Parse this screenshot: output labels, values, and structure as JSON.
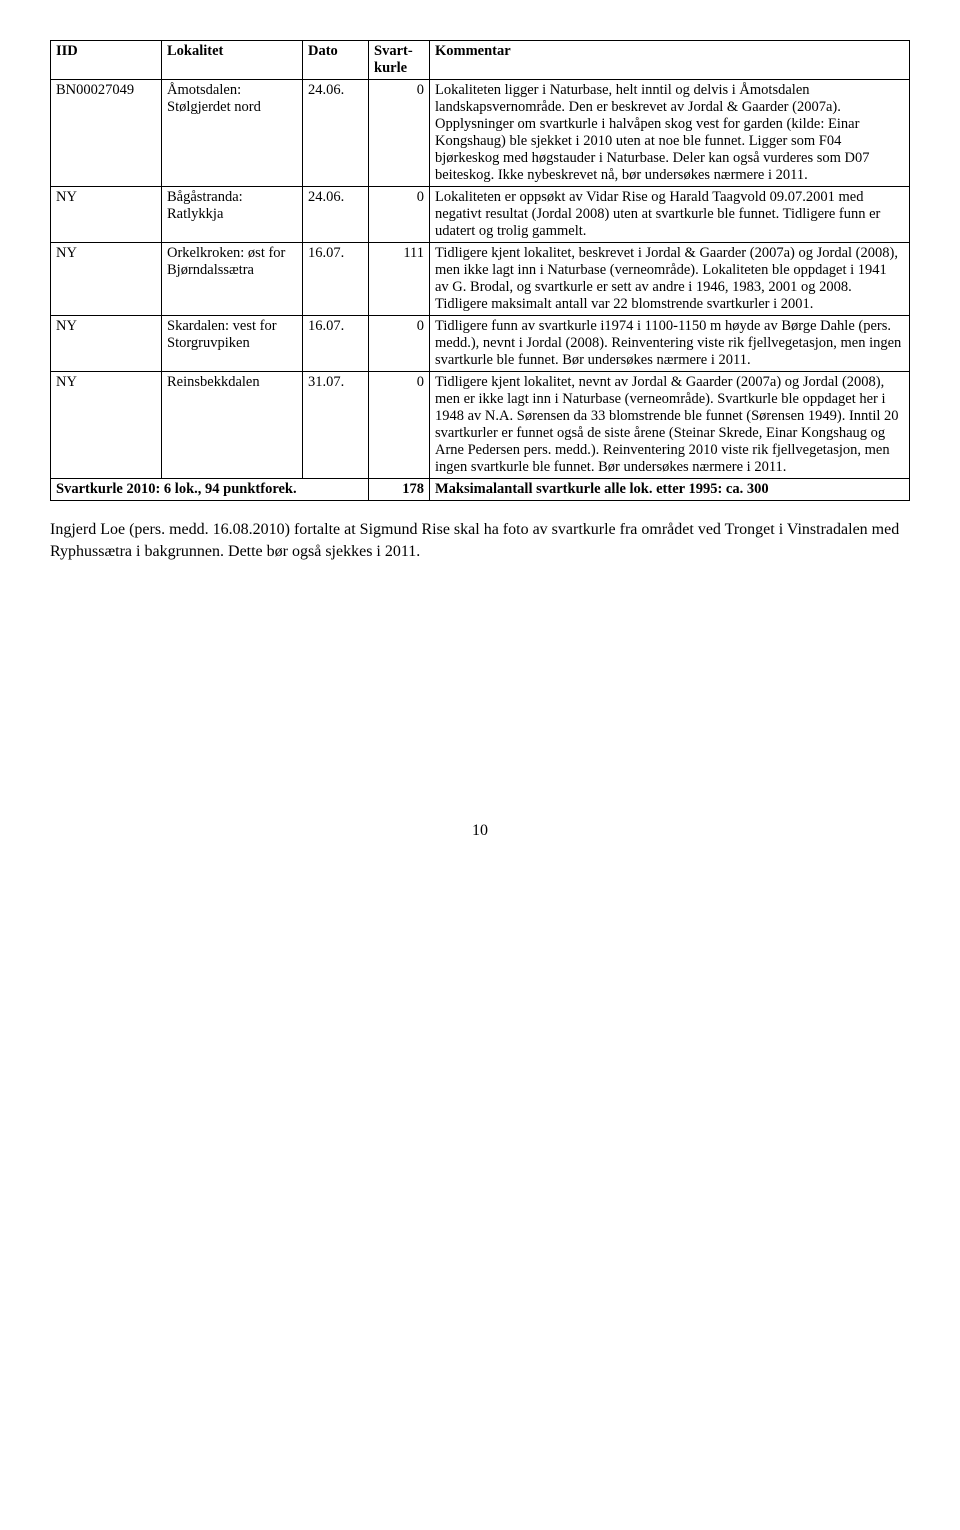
{
  "table": {
    "headers": {
      "iid": "IID",
      "lokalitet": "Lokalitet",
      "dato": "Dato",
      "svartkurle": "Svart-kurle",
      "kommentar": "Kommentar"
    },
    "rows": [
      {
        "iid": "BN00027049",
        "lokalitet": "Åmotsdalen: Stølgjerdet nord",
        "dato": "24.06.",
        "svart": "0",
        "kommentar": "Lokaliteten ligger i Naturbase, helt inntil og delvis i Åmotsdalen landskapsvernområde. Den er beskrevet av Jordal & Gaarder (2007a). Opplysninger om svartkurle i halvåpen skog vest for garden (kilde: Einar Kongshaug) ble sjekket i 2010 uten at noe ble funnet. Ligger som F04 bjørkeskog med høgstauder i Naturbase. Deler kan også vurderes som D07 beiteskog. Ikke nybeskrevet nå, bør undersøkes nærmere i 2011."
      },
      {
        "iid": "NY",
        "lokalitet": "Bågåstranda: Ratlykkja",
        "dato": "24.06.",
        "svart": "0",
        "kommentar": "Lokaliteten er oppsøkt av Vidar Rise og Harald Taagvold 09.07.2001 med negativt resultat (Jordal 2008) uten at svartkurle ble funnet. Tidligere funn er udatert og trolig gammelt."
      },
      {
        "iid": "NY",
        "lokalitet": "Orkelkroken: øst for Bjørndalssætra",
        "dato": "16.07.",
        "svart": "111",
        "kommentar": "Tidligere kjent lokalitet, beskrevet i Jordal & Gaarder (2007a) og Jordal (2008), men ikke lagt inn i Naturbase (verneområde). Lokaliteten ble oppdaget i 1941 av G. Brodal, og svartkurle er sett av andre i 1946, 1983, 2001 og 2008. Tidligere maksimalt antall var 22 blomstrende svartkurler i 2001."
      },
      {
        "iid": "NY",
        "lokalitet": "Skardalen: vest for Storgruvpiken",
        "dato": "16.07.",
        "svart": "0",
        "kommentar": "Tidligere funn av svartkurle i1974 i 1100-1150 m høyde av Børge Dahle (pers. medd.), nevnt i Jordal (2008). Reinventering viste rik fjellvegetasjon, men ingen svartkurle ble funnet. Bør undersøkes nærmere i 2011."
      },
      {
        "iid": "NY",
        "lokalitet": "Reinsbekkdalen",
        "dato": "31.07.",
        "svart": "0",
        "kommentar": "Tidligere kjent lokalitet, nevnt av Jordal & Gaarder (2007a) og Jordal (2008), men er ikke lagt inn i Naturbase (verneområde). Svartkurle ble oppdaget her i 1948 av N.A. Sørensen da 33 blomstrende ble funnet (Sørensen 1949). Inntil 20 svartkurler er funnet også de siste årene (Steinar Skrede, Einar Kongshaug og Arne Pedersen pers. medd.). Reinventering 2010 viste rik fjellvegetasjon, men ingen svartkurle ble funnet. Bør undersøkes nærmere i 2011."
      }
    ],
    "footer": {
      "left": "Svartkurle 2010: 6 lok., 94 punktforek.",
      "svart": "178",
      "right": "Maksimalantall svartkurle alle lok. etter 1995: ca. 300"
    }
  },
  "paragraph": "Ingjerd Loe (pers. medd. 16.08.2010) fortalte at Sigmund Rise skal ha foto av svartkurle fra området ved Tronget i Vinstradalen med Ryphussætra i bakgrunnen. Dette bør også sjekkes i 2011.",
  "page_number": "10"
}
